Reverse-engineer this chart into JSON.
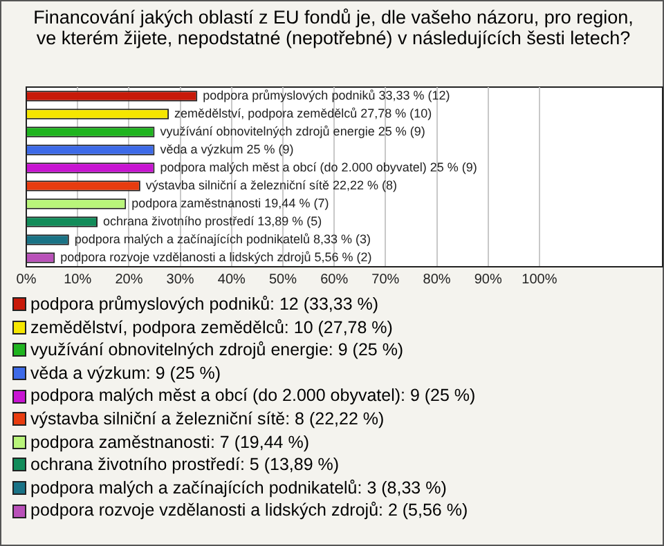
{
  "chart_data": {
    "type": "bar",
    "orientation": "horizontal",
    "stacked": true,
    "title": "Financování jakých oblastí z EU fondů je, dle vašeho názoru, pro region, ve kterém žijete, nepodstatné (nepotřebné) v následujících šesti letech?",
    "categories": [
      null,
      null,
      null,
      null,
      null,
      null,
      null,
      null,
      null,
      null
    ],
    "series": [
      {
        "name": "podpora průmyslových podniků: 12 (33,33 %)",
        "color": "#c81a0a",
        "values": [
          33.33,
          null,
          null,
          null,
          null,
          null,
          null,
          null,
          null,
          null
        ],
        "value_labels": [
          "podpora průmyslových podniků 33,33 % (12)",
          null,
          null,
          null,
          null,
          null,
          null,
          null,
          null,
          null
        ]
      },
      {
        "name": "zemědělství, podpora zemědělců: 10 (27,78 %)",
        "color": "#f5e600",
        "values": [
          null,
          27.78,
          null,
          null,
          null,
          null,
          null,
          null,
          null,
          null
        ],
        "value_labels": [
          null,
          "zemědělství, podpora zemědělců 27,78 % (10)",
          null,
          null,
          null,
          null,
          null,
          null,
          null,
          null
        ]
      },
      {
        "name": "využívání obnovitelných zdrojů energie: 9 (25 %)",
        "color": "#1fb41f",
        "values": [
          null,
          null,
          25,
          null,
          null,
          null,
          null,
          null,
          null,
          null
        ],
        "value_labels": [
          null,
          null,
          "využívání obnovitelných zdrojů energie 25 % (9)",
          null,
          null,
          null,
          null,
          null,
          null,
          null
        ]
      },
      {
        "name": "věda a výzkum: 9 (25 %)",
        "color": "#3d6ae8",
        "values": [
          null,
          null,
          null,
          25,
          null,
          null,
          null,
          null,
          null,
          null
        ],
        "value_labels": [
          null,
          null,
          null,
          "věda a výzkum 25 % (9)",
          null,
          null,
          null,
          null,
          null,
          null
        ]
      },
      {
        "name": "podpora malých měst a obcí (do 2.000 obyvatel): 9 (25 %)",
        "color": "#c814d2",
        "values": [
          null,
          null,
          null,
          null,
          25,
          null,
          null,
          null,
          null,
          null
        ],
        "value_labels": [
          null,
          null,
          null,
          null,
          "podpora malých měst a obcí (do 2.000 obyvatel) 25 % (9)",
          null,
          null,
          null,
          null,
          null
        ]
      },
      {
        "name": "výstavba silniční a železniční sítě: 8 (22,22 %)",
        "color": "#e83c0f",
        "values": [
          null,
          null,
          null,
          null,
          null,
          22.22,
          null,
          null,
          null,
          null
        ],
        "value_labels": [
          null,
          null,
          null,
          null,
          null,
          "výstavba silniční a železniční sítě 22,22 % (8)",
          null,
          null,
          null,
          null
        ]
      },
      {
        "name": "podpora zaměstnanosti: 7 (19,44 %)",
        "color": "#b9f57a",
        "values": [
          null,
          null,
          null,
          null,
          null,
          null,
          19.44,
          null,
          null,
          null
        ],
        "value_labels": [
          null,
          null,
          null,
          null,
          null,
          null,
          "podpora zaměstnanosti 19,44 % (7)",
          null,
          null,
          null
        ]
      },
      {
        "name": "ochrana životního prostředí: 5 (13,89 %)",
        "color": "#128c5a",
        "values": [
          null,
          null,
          null,
          null,
          null,
          null,
          null,
          13.89,
          null,
          null
        ],
        "value_labels": [
          null,
          null,
          null,
          null,
          null,
          null,
          null,
          "ochrana životního prostředí 13,89 % (5)",
          null,
          null
        ]
      },
      {
        "name": "podpora malých a začínajících podnikatelů: 3 (8,33 %)",
        "color": "#1a7386",
        "values": [
          null,
          null,
          null,
          null,
          null,
          null,
          null,
          null,
          8.33,
          null
        ],
        "value_labels": [
          null,
          null,
          null,
          null,
          null,
          null,
          null,
          null,
          "podpora malých a začínajících podnikatelů 8,33 % (3)",
          null
        ]
      },
      {
        "name": "podpora rozvoje vzdělanosti a lidských zdrojů: 2 (5,56 %)",
        "color": "#b950b9",
        "values": [
          null,
          null,
          null,
          null,
          null,
          null,
          null,
          null,
          null,
          5.56
        ],
        "value_labels": [
          null,
          null,
          null,
          null,
          null,
          null,
          null,
          null,
          null,
          "podpora rozvoje vzdělanosti a lidských zdrojů 5,56 % (2)"
        ]
      }
    ],
    "xlim": [
      0,
      124
    ],
    "xticks": [
      {
        "value": 0,
        "label": "0%"
      },
      {
        "value": 10,
        "label": "10%"
      },
      {
        "value": 20,
        "label": "20%"
      },
      {
        "value": 30,
        "label": "30%"
      },
      {
        "value": 40,
        "label": "40%"
      },
      {
        "value": 50,
        "label": "50%"
      },
      {
        "value": 60,
        "label": "60%"
      },
      {
        "value": 70,
        "label": "70%"
      },
      {
        "value": 80,
        "label": "80%"
      },
      {
        "value": 90,
        "label": "90%"
      },
      {
        "value": 100,
        "label": "100%"
      }
    ],
    "tick_labels": "x",
    "grid": "x",
    "legend": "bottom"
  }
}
